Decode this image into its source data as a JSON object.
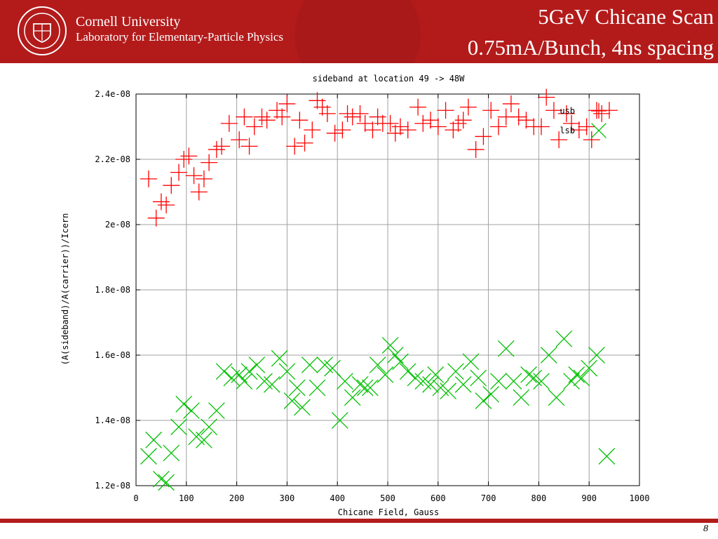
{
  "header": {
    "org_name": "Cornell University",
    "org_lab": "Laboratory for Elementary-Particle Physics",
    "title_line1": "5GeV Chicane Scan",
    "title_line2": "0.75mA/Bunch, 4ns spacing",
    "accent_color": "#b31b1b",
    "logo_icon": "cornell-seal-icon"
  },
  "footer": {
    "page_number": "8"
  },
  "chart_data": {
    "type": "scatter",
    "title": "sideband at location 49 -> 48W",
    "xlabel": "Chicane Field, Gauss",
    "ylabel": "(A(sideband)/A(carrier))/Icern",
    "xlim": [
      0,
      1000
    ],
    "ylim": [
      1.2e-08,
      2.4e-08
    ],
    "x_ticks": [
      0,
      100,
      200,
      300,
      400,
      500,
      600,
      700,
      800,
      900,
      1000
    ],
    "x_tick_labels": [
      "0",
      "100",
      "200",
      "300",
      "400",
      "500",
      "600",
      "700",
      "800",
      "900",
      "1000"
    ],
    "y_ticks": [
      1.2e-08,
      1.4e-08,
      1.6e-08,
      1.8e-08,
      2e-08,
      2.2e-08,
      2.4e-08
    ],
    "y_tick_labels": [
      "1.2e-08",
      "1.4e-08",
      "1.6e-08",
      "1.8e-08",
      "2e-08",
      "2.2e-08",
      "2.4e-08"
    ],
    "grid": true,
    "legend_position": "top-right",
    "series": [
      {
        "name": "usb",
        "marker": "plus",
        "color": "#ff0000",
        "x": [
          25,
          40,
          50,
          60,
          70,
          85,
          95,
          105,
          115,
          125,
          135,
          145,
          160,
          170,
          185,
          205,
          215,
          225,
          235,
          250,
          260,
          280,
          290,
          300,
          315,
          325,
          335,
          350,
          360,
          370,
          380,
          395,
          410,
          420,
          430,
          445,
          455,
          470,
          480,
          490,
          505,
          515,
          525,
          540,
          560,
          570,
          585,
          600,
          615,
          630,
          640,
          650,
          660,
          675,
          690,
          705,
          720,
          735,
          745,
          760,
          775,
          790,
          805,
          815,
          830,
          840,
          855,
          865,
          880,
          895,
          905,
          915,
          925,
          940
        ],
        "y": [
          2.14e-08,
          2.02e-08,
          2.07e-08,
          2.06e-08,
          2.12e-08,
          2.16e-08,
          2.2e-08,
          2.21e-08,
          2.15e-08,
          2.1e-08,
          2.14e-08,
          2.19e-08,
          2.23e-08,
          2.24e-08,
          2.31e-08,
          2.26e-08,
          2.33e-08,
          2.24e-08,
          2.3e-08,
          2.33e-08,
          2.32e-08,
          2.35e-08,
          2.33e-08,
          2.37e-08,
          2.24e-08,
          2.32e-08,
          2.25e-08,
          2.29e-08,
          2.38e-08,
          2.36e-08,
          2.34e-08,
          2.28e-08,
          2.29e-08,
          2.34e-08,
          2.33e-08,
          2.34e-08,
          2.31e-08,
          2.29e-08,
          2.33e-08,
          2.31e-08,
          2.31e-08,
          2.28e-08,
          2.3e-08,
          2.29e-08,
          2.36e-08,
          2.31e-08,
          2.32e-08,
          2.3e-08,
          2.35e-08,
          2.29e-08,
          2.31e-08,
          2.32e-08,
          2.36e-08,
          2.23e-08,
          2.27e-08,
          2.35e-08,
          2.3e-08,
          2.33e-08,
          2.37e-08,
          2.33e-08,
          2.32e-08,
          2.3e-08,
          2.3e-08,
          2.39e-08,
          2.35e-08,
          2.26e-08,
          2.34e-08,
          2.31e-08,
          2.29e-08,
          2.3e-08,
          2.26e-08,
          2.35e-08,
          2.34e-08,
          2.35e-08
        ]
      },
      {
        "name": "lsb",
        "marker": "cross",
        "color": "#00c000",
        "x": [
          25,
          35,
          50,
          60,
          70,
          85,
          95,
          110,
          120,
          135,
          145,
          160,
          175,
          190,
          205,
          215,
          225,
          240,
          255,
          270,
          285,
          300,
          310,
          320,
          330,
          345,
          360,
          375,
          390,
          405,
          415,
          430,
          445,
          455,
          465,
          480,
          495,
          505,
          515,
          525,
          540,
          555,
          570,
          585,
          595,
          605,
          620,
          635,
          650,
          665,
          680,
          690,
          705,
          720,
          735,
          750,
          765,
          780,
          790,
          805,
          820,
          835,
          850,
          865,
          875,
          885,
          900,
          915,
          935
        ],
        "y": [
          1.29e-08,
          1.34e-08,
          1.22e-08,
          1.21e-08,
          1.3e-08,
          1.38e-08,
          1.45e-08,
          1.43e-08,
          1.35e-08,
          1.34e-08,
          1.38e-08,
          1.43e-08,
          1.55e-08,
          1.53e-08,
          1.54e-08,
          1.52e-08,
          1.55e-08,
          1.57e-08,
          1.52e-08,
          1.51e-08,
          1.59e-08,
          1.55e-08,
          1.46e-08,
          1.5e-08,
          1.44e-08,
          1.57e-08,
          1.5e-08,
          1.57e-08,
          1.56e-08,
          1.4e-08,
          1.52e-08,
          1.47e-08,
          1.51e-08,
          1.5e-08,
          1.5e-08,
          1.57e-08,
          1.54e-08,
          1.63e-08,
          1.6e-08,
          1.58e-08,
          1.55e-08,
          1.53e-08,
          1.52e-08,
          1.51e-08,
          1.54e-08,
          1.5e-08,
          1.49e-08,
          1.55e-08,
          1.51e-08,
          1.58e-08,
          1.53e-08,
          1.46e-08,
          1.48e-08,
          1.52e-08,
          1.62e-08,
          1.52e-08,
          1.47e-08,
          1.54e-08,
          1.53e-08,
          1.52e-08,
          1.6e-08,
          1.47e-08,
          1.65e-08,
          1.52e-08,
          1.54e-08,
          1.53e-08,
          1.56e-08,
          1.6e-08,
          1.29e-08
        ]
      }
    ]
  }
}
